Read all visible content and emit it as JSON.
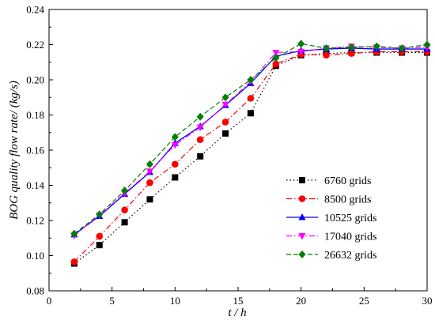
{
  "chart_data": {
    "type": "line",
    "title": "",
    "xlabel": "t / h",
    "ylabel": "BOG quality flow rate/ (kg/s)",
    "xlim": [
      0,
      30
    ],
    "ylim": [
      0.08,
      0.24
    ],
    "xticks": [
      "0",
      "5",
      "10",
      "15",
      "20",
      "25",
      "30"
    ],
    "yticks": [
      "0.08",
      "0.10",
      "0.12",
      "0.14",
      "0.16",
      "0.18",
      "0.20",
      "0.22",
      "0.24"
    ],
    "grid": false,
    "legend_position": "bottom-right",
    "series": [
      {
        "name": "6760 grids",
        "color": "#000000",
        "marker": "square",
        "line_style": "dotted",
        "x": [
          2,
          4,
          6,
          8,
          10,
          12,
          14,
          16,
          18,
          20,
          22,
          24,
          26,
          28,
          30
        ],
        "y": [
          0.0955,
          0.106,
          0.119,
          0.132,
          0.1445,
          0.1565,
          0.1695,
          0.181,
          0.208,
          0.214,
          0.215,
          0.2155,
          0.2155,
          0.2155,
          0.2155
        ]
      },
      {
        "name": "8500 grids",
        "color": "#ff0000",
        "marker": "circle",
        "line_style": "dashdot",
        "x": [
          2,
          4,
          6,
          8,
          10,
          12,
          14,
          16,
          18,
          20,
          22,
          24,
          26,
          28,
          30
        ],
        "y": [
          0.0965,
          0.111,
          0.126,
          0.1415,
          0.152,
          0.166,
          0.176,
          0.1895,
          0.209,
          0.2145,
          0.214,
          0.215,
          0.216,
          0.216,
          0.216
        ]
      },
      {
        "name": "10525 grids",
        "color": "#0000ff",
        "marker": "triangle-up",
        "line_style": "solid",
        "x": [
          2,
          4,
          6,
          8,
          10,
          12,
          14,
          16,
          18,
          20,
          22,
          24,
          26,
          28,
          30
        ],
        "y": [
          0.112,
          0.1225,
          0.135,
          0.1475,
          0.164,
          0.1735,
          0.1855,
          0.198,
          0.2135,
          0.2165,
          0.2175,
          0.218,
          0.2175,
          0.2175,
          0.2175
        ]
      },
      {
        "name": "17040 grids",
        "color": "#ff00ff",
        "marker": "triangle-down",
        "line_style": "dashdot",
        "x": [
          2,
          4,
          6,
          8,
          10,
          12,
          14,
          16,
          18,
          20,
          22,
          24,
          26,
          28,
          30
        ],
        "y": [
          0.1115,
          0.123,
          0.1355,
          0.148,
          0.163,
          0.173,
          0.186,
          0.199,
          0.2155,
          0.216,
          0.218,
          0.219,
          0.2185,
          0.218,
          0.2185
        ]
      },
      {
        "name": "26632 grids",
        "color": "#008000",
        "marker": "diamond",
        "line_style": "dashed",
        "x": [
          2,
          4,
          6,
          8,
          10,
          12,
          14,
          16,
          18,
          20,
          22,
          24,
          26,
          28,
          30
        ],
        "y": [
          0.1125,
          0.1235,
          0.137,
          0.152,
          0.1675,
          0.179,
          0.19,
          0.2,
          0.2125,
          0.2205,
          0.218,
          0.2185,
          0.219,
          0.218,
          0.22
        ]
      }
    ]
  }
}
